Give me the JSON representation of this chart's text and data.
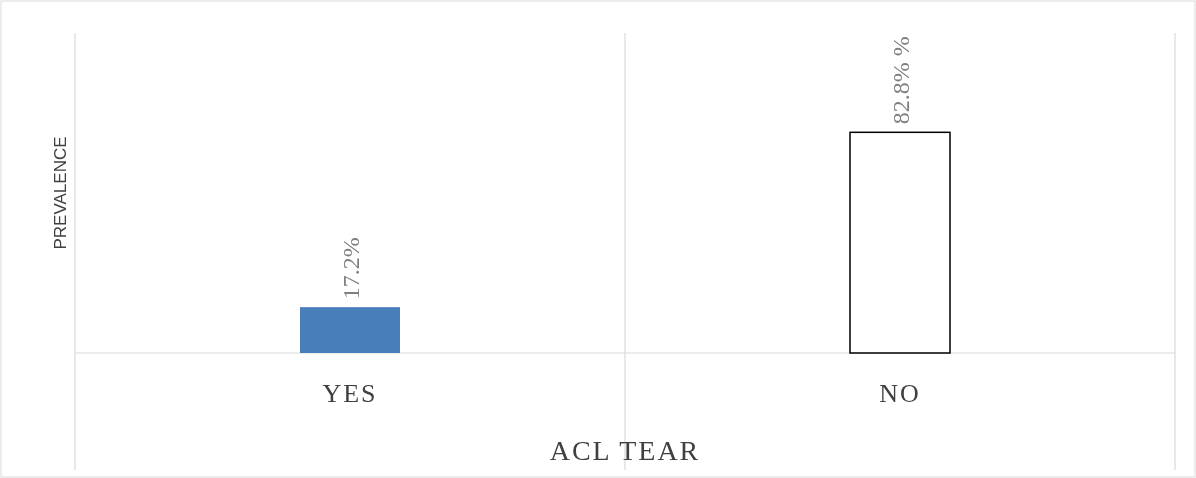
{
  "chart_data": {
    "type": "bar",
    "xlabel": "ACL TEAR",
    "ylabel": "PREVALENCE",
    "categories": [
      "YES",
      "NO"
    ],
    "values": [
      17.2,
      82.8
    ],
    "colors": [
      "#4a7ebb",
      "#ffffff"
    ],
    "value_labels": [
      "17.2%",
      "82.8% %"
    ],
    "grid": "x"
  }
}
